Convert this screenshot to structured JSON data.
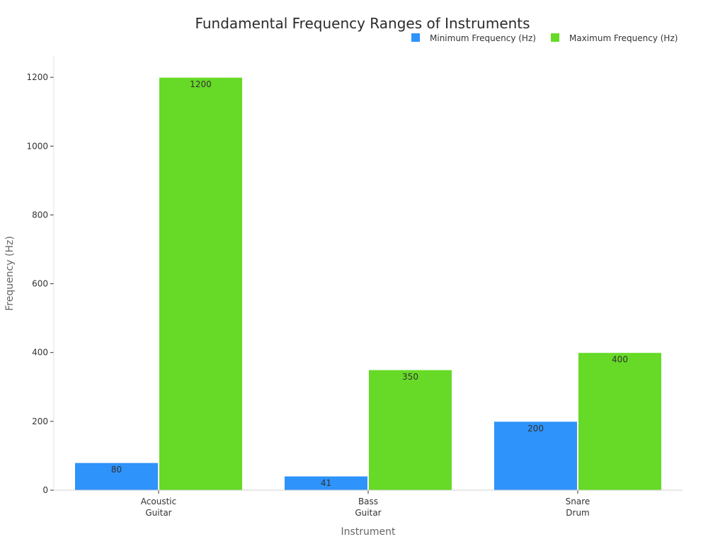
{
  "chart_data": {
    "type": "bar",
    "title": "Fundamental Frequency Ranges of Instruments",
    "xlabel": "Instrument",
    "ylabel": "Frequency (Hz)",
    "categories": [
      [
        "Acoustic",
        "Guitar"
      ],
      [
        "Bass",
        "Guitar"
      ],
      [
        "Snare",
        "Drum"
      ]
    ],
    "series": [
      {
        "name": "Minimum Frequency (Hz)",
        "color": "#2e93fa",
        "values": [
          80,
          41,
          200
        ]
      },
      {
        "name": "Maximum Frequency (Hz)",
        "color": "#66da26",
        "values": [
          1200,
          350,
          400
        ]
      }
    ],
    "ylim": [
      0,
      1260
    ],
    "yticks": [
      0,
      200,
      400,
      600,
      800,
      1000,
      1200
    ],
    "grid": false,
    "legend_position": "top-right"
  }
}
